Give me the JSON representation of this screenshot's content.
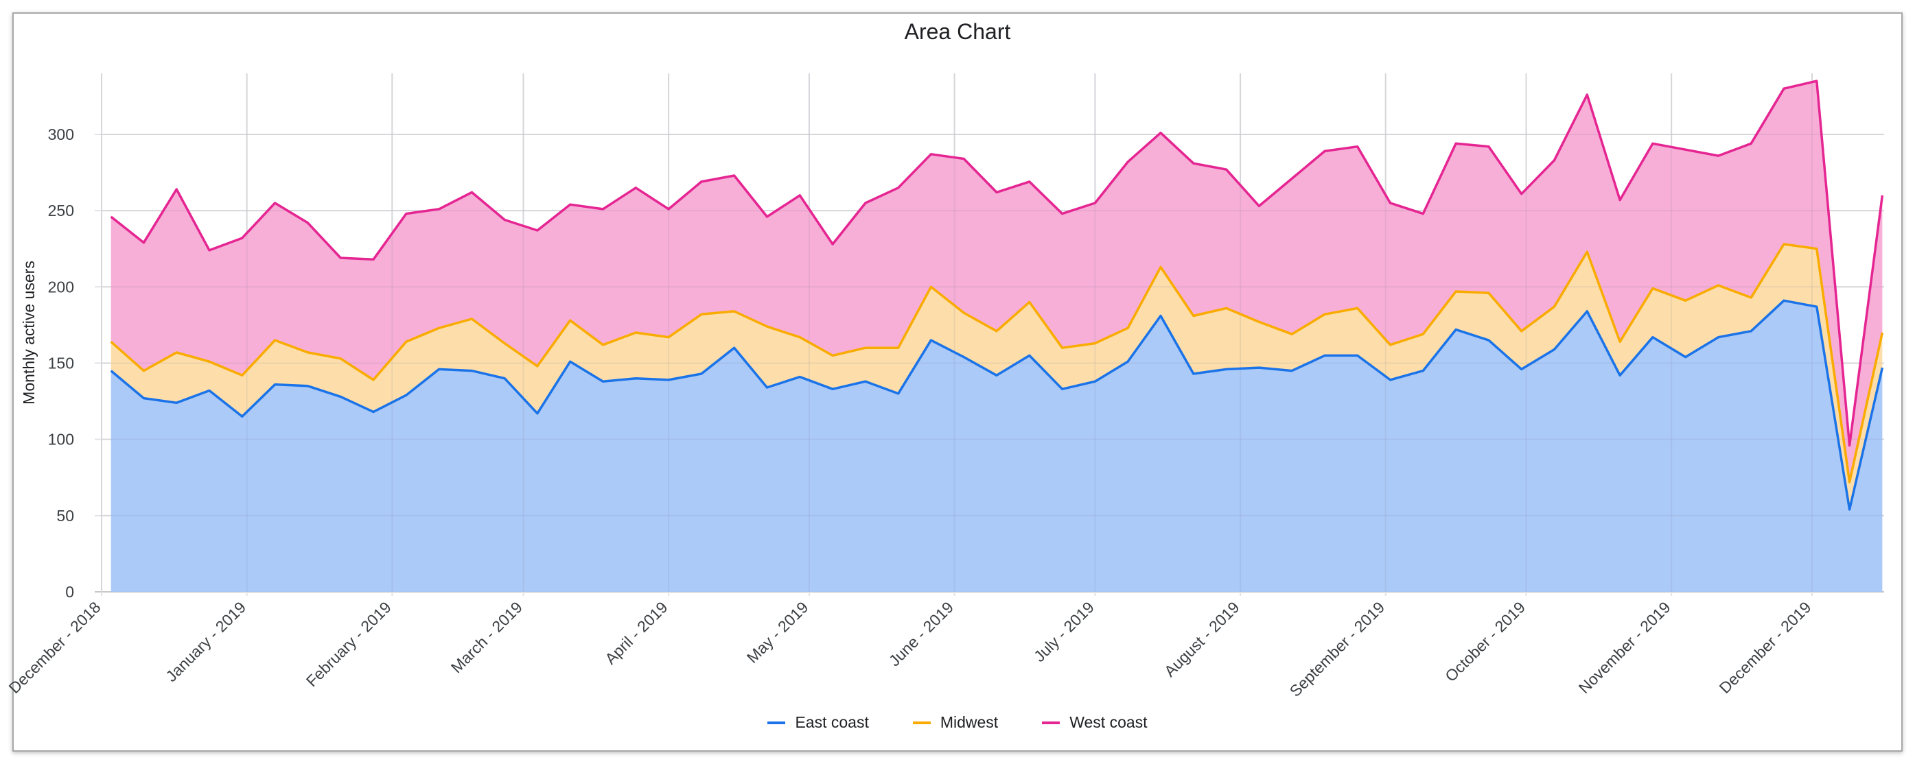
{
  "chart_data": {
    "type": "area",
    "stacked": true,
    "title": "Area Chart",
    "xlabel": "",
    "ylabel": "Monthly active users",
    "ylim": [
      0,
      340
    ],
    "yticks": [
      0,
      50,
      100,
      150,
      200,
      250,
      300
    ],
    "xticks": [
      "December - 2018",
      "January - 2019",
      "February - 2019",
      "March - 2019",
      "April - 2019",
      "May - 2019",
      "June - 2019",
      "July - 2019",
      "August - 2019",
      "September - 2019",
      "October - 2019",
      "November - 2019",
      "December - 2019"
    ],
    "xtick_dates": [
      "2018-12-01",
      "2019-01-01",
      "2019-02-01",
      "2019-03-01",
      "2019-04-01",
      "2019-05-01",
      "2019-06-01",
      "2019-07-01",
      "2019-08-01",
      "2019-09-01",
      "2019-10-01",
      "2019-11-01",
      "2019-12-01"
    ],
    "grid": true,
    "legend": "bottom",
    "x": [
      "2018-12-03",
      "2018-12-10",
      "2018-12-17",
      "2018-12-24",
      "2018-12-31",
      "2019-01-07",
      "2019-01-14",
      "2019-01-21",
      "2019-01-28",
      "2019-02-04",
      "2019-02-11",
      "2019-02-18",
      "2019-02-25",
      "2019-03-04",
      "2019-03-11",
      "2019-03-18",
      "2019-03-25",
      "2019-04-01",
      "2019-04-08",
      "2019-04-15",
      "2019-04-22",
      "2019-04-29",
      "2019-05-06",
      "2019-05-13",
      "2019-05-20",
      "2019-05-27",
      "2019-06-03",
      "2019-06-10",
      "2019-06-17",
      "2019-06-24",
      "2019-07-01",
      "2019-07-08",
      "2019-07-15",
      "2019-07-22",
      "2019-07-29",
      "2019-08-05",
      "2019-08-12",
      "2019-08-19",
      "2019-08-26",
      "2019-09-02",
      "2019-09-09",
      "2019-09-16",
      "2019-09-23",
      "2019-09-30",
      "2019-10-07",
      "2019-10-14",
      "2019-10-21",
      "2019-10-28",
      "2019-11-04",
      "2019-11-11",
      "2019-11-18",
      "2019-11-25",
      "2019-12-02",
      "2019-12-09",
      "2019-12-16"
    ],
    "series": [
      {
        "name": "East coast",
        "line_color": "#1a73e8",
        "fill_color": "#a8c7f7",
        "values": [
          145,
          127,
          124,
          132,
          115,
          136,
          135,
          128,
          118,
          129,
          146,
          145,
          140,
          117,
          151,
          138,
          140,
          139,
          143,
          160,
          134,
          141,
          133,
          138,
          130,
          165,
          154,
          142,
          155,
          133,
          138,
          151,
          181,
          143,
          146,
          147,
          145,
          155,
          155,
          139,
          145,
          172,
          165,
          146,
          159,
          184,
          142,
          167,
          154,
          167,
          171,
          191,
          187,
          54,
          147
        ]
      },
      {
        "name": "Midwest",
        "line_color": "#f9ab00",
        "fill_color": "#fddca6",
        "values": [
          19,
          18,
          33,
          19,
          27,
          29,
          22,
          25,
          21,
          35,
          27,
          34,
          23,
          31,
          27,
          24,
          30,
          28,
          39,
          24,
          40,
          26,
          22,
          22,
          30,
          35,
          29,
          29,
          35,
          27,
          25,
          22,
          32,
          38,
          40,
          30,
          24,
          27,
          31,
          23,
          24,
          25,
          31,
          25,
          28,
          39,
          22,
          32,
          37,
          34,
          22,
          37,
          38,
          18,
          23
        ]
      },
      {
        "name": "West coast",
        "line_color": "#e52592",
        "fill_color": "#f7abd5",
        "values": [
          82,
          84,
          107,
          73,
          90,
          90,
          85,
          66,
          79,
          84,
          78,
          83,
          81,
          89,
          76,
          89,
          95,
          84,
          87,
          89,
          72,
          93,
          73,
          95,
          105,
          87,
          101,
          91,
          79,
          88,
          92,
          109,
          88,
          100,
          91,
          76,
          102,
          107,
          106,
          93,
          79,
          97,
          96,
          90,
          96,
          103,
          93,
          95,
          99,
          85,
          101,
          102,
          110,
          24,
          90
        ]
      }
    ]
  }
}
